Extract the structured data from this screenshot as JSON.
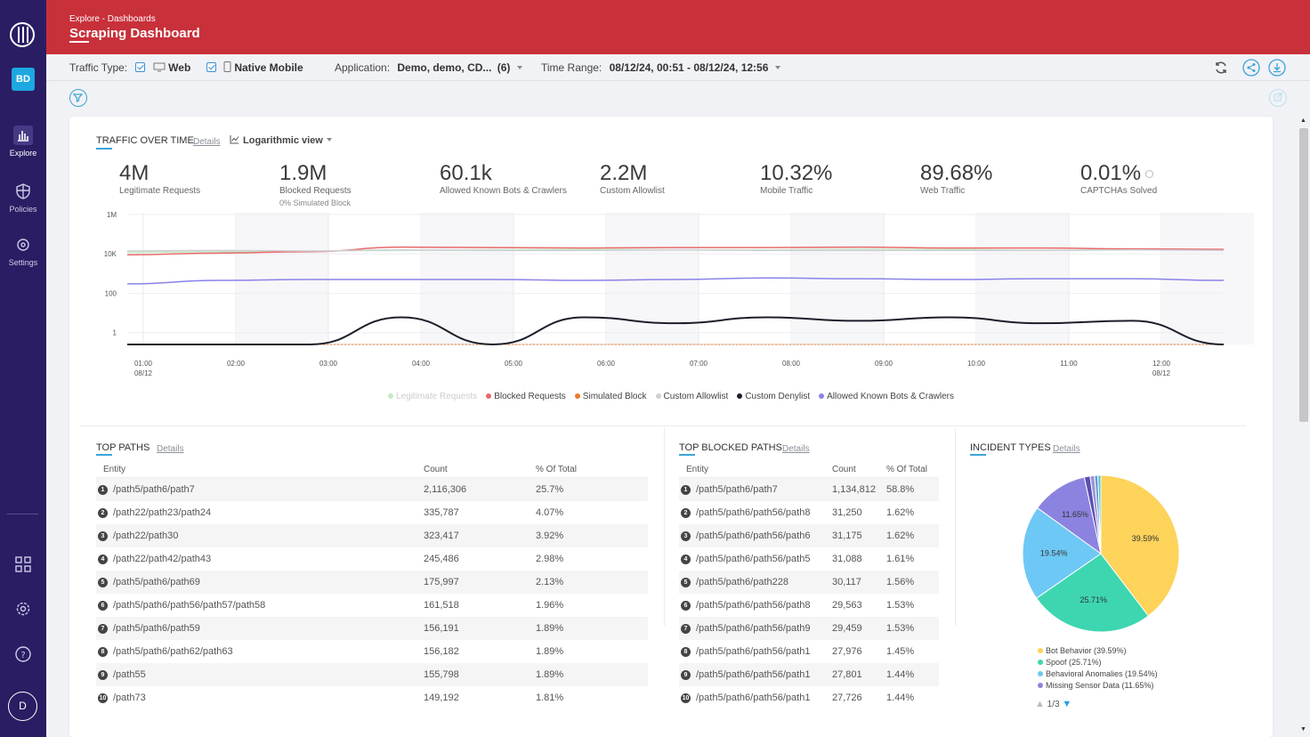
{
  "header": {
    "breadcrumb": "Explore - Dashboards",
    "title": "Scraping Dashboard"
  },
  "sidebar": {
    "avatar": "BD",
    "user": "D",
    "items": [
      {
        "label": "Explore"
      },
      {
        "label": "Policies"
      },
      {
        "label": "Settings"
      }
    ]
  },
  "toolbar": {
    "traffic_type_label": "Traffic Type:",
    "web": "Web",
    "native_mobile": "Native Mobile",
    "application_label": "Application:",
    "application_value": "Demo, demo, CD...",
    "application_count": "(6)",
    "time_range_label": "Time Range:",
    "time_range_value": "08/12/24, 00:51 - 08/12/24, 12:56"
  },
  "traffic": {
    "title": "TRAFFIC OVER TIME",
    "details": "Details",
    "view": "Logarithmic view",
    "kpis": [
      {
        "value": "4M",
        "label": "Legitimate Requests",
        "sub": ""
      },
      {
        "value": "1.9M",
        "label": "Blocked Requests",
        "sub": "0% Simulated Block"
      },
      {
        "value": "60.1k",
        "label": "Allowed Known Bots & Crawlers",
        "sub": ""
      },
      {
        "value": "2.2M",
        "label": "Custom Allowlist",
        "sub": ""
      },
      {
        "value": "10.32%",
        "label": "Mobile Traffic",
        "sub": ""
      },
      {
        "value": "89.68%",
        "label": "Web Traffic",
        "sub": ""
      },
      {
        "value": "0.01%",
        "label": "CAPTCHAs Solved",
        "sub": ""
      }
    ]
  },
  "chart_data": {
    "type": "line",
    "scale": "log",
    "y_ticks": [
      "1M",
      "10K",
      "100",
      "1"
    ],
    "x_ticks": [
      "01:00",
      "02:00",
      "03:00",
      "04:00",
      "05:00",
      "06:00",
      "07:00",
      "08:00",
      "09:00",
      "10:00",
      "11:00",
      "12:00"
    ],
    "x_date_label": "08/12",
    "series": [
      {
        "name": "Legitimate Requests",
        "color": "#c4eac4",
        "values": [
          12000,
          13000,
          14000,
          15000,
          16000,
          17000,
          16000,
          16000,
          17000,
          17000,
          15000,
          16000,
          16000
        ]
      },
      {
        "name": "Blocked Requests",
        "color": "#e86a6a",
        "values": [
          9000,
          11000,
          13000,
          22000,
          21000,
          20000,
          21000,
          21000,
          22000,
          20000,
          20000,
          18000,
          17000
        ]
      },
      {
        "name": "Simulated Block",
        "color": "#ef7a2a",
        "values": [
          0,
          0,
          0,
          0,
          0,
          0,
          0,
          0,
          0,
          0,
          0,
          0,
          0
        ]
      },
      {
        "name": "Custom Allowlist",
        "color": "#cfcfd6",
        "values": [
          14000,
          15000,
          14000,
          16000,
          15000,
          15000,
          16000,
          15000,
          15000,
          15000,
          15000,
          16000,
          15000
        ]
      },
      {
        "name": "Custom Denylist",
        "color": "#1d1d2b",
        "values": [
          0,
          0,
          0,
          6,
          0,
          6,
          3,
          6,
          4,
          6,
          3,
          4,
          0
        ]
      },
      {
        "name": "Allowed Known Bots & Crawlers",
        "color": "#8a82e8",
        "values": [
          300,
          450,
          500,
          500,
          500,
          450,
          500,
          600,
          550,
          500,
          550,
          550,
          450
        ]
      }
    ]
  },
  "legend": [
    "Legitimate Requests",
    "Blocked Requests",
    "Simulated Block",
    "Custom Allowlist",
    "Custom Denylist",
    "Allowed Known Bots & Crawlers"
  ],
  "top_paths": {
    "title": "TOP PATHS",
    "details": "Details",
    "headers": [
      "Entity",
      "Count",
      "% Of Total"
    ],
    "rows": [
      [
        "/path5/path6/path7",
        "2,116,306",
        "25.7%"
      ],
      [
        "/path22/path23/path24",
        "335,787",
        "4.07%"
      ],
      [
        "/path22/path30",
        "323,417",
        "3.92%"
      ],
      [
        "/path22/path42/path43",
        "245,486",
        "2.98%"
      ],
      [
        "/path5/path6/path69",
        "175,997",
        "2.13%"
      ],
      [
        "/path5/path6/path56/path57/path58",
        "161,518",
        "1.96%"
      ],
      [
        "/path5/path6/path59",
        "156,191",
        "1.89%"
      ],
      [
        "/path5/path6/path62/path63",
        "156,182",
        "1.89%"
      ],
      [
        "/path55",
        "155,798",
        "1.89%"
      ],
      [
        "/path73",
        "149,192",
        "1.81%"
      ]
    ]
  },
  "top_blocked": {
    "title": "TOP BLOCKED PATHS",
    "details": "Details",
    "headers": [
      "Entity",
      "Count",
      "% Of Total"
    ],
    "rows": [
      [
        "/path5/path6/path7",
        "1,134,812",
        "58.8%"
      ],
      [
        "/path5/path6/path56/path8",
        "31,250",
        "1.62%"
      ],
      [
        "/path5/path6/path56/path6",
        "31,175",
        "1.62%"
      ],
      [
        "/path5/path6/path56/path5",
        "31,088",
        "1.61%"
      ],
      [
        "/path5/path6/path228",
        "30,117",
        "1.56%"
      ],
      [
        "/path5/path6/path56/path8",
        "29,563",
        "1.53%"
      ],
      [
        "/path5/path6/path56/path9",
        "29,459",
        "1.53%"
      ],
      [
        "/path5/path6/path56/path1",
        "27,976",
        "1.45%"
      ],
      [
        "/path5/path6/path56/path1",
        "27,801",
        "1.44%"
      ],
      [
        "/path5/path6/path56/path1",
        "27,726",
        "1.44%"
      ]
    ]
  },
  "incidents": {
    "title": "INCIDENT TYPES",
    "details": "Details",
    "pager": "1/3",
    "slices": [
      {
        "name": "Bot Behavior",
        "pct": 39.59,
        "label": "39.59%",
        "legend": "Bot Behavior (39.59%)",
        "color": "#fdd35a"
      },
      {
        "name": "Spoof",
        "pct": 25.71,
        "label": "25.71%",
        "legend": "Spoof (25.71%)",
        "color": "#3dd6b0"
      },
      {
        "name": "Behavioral Anomalies",
        "pct": 19.54,
        "label": "19.54%",
        "legend": "Behavioral Anomalies (19.54%)",
        "color": "#6ec8f5"
      },
      {
        "name": "Missing Sensor Data",
        "pct": 11.65,
        "label": "11.65%",
        "legend": "Missing Sensor Data (11.65%)",
        "color": "#8c83e0"
      },
      {
        "name": "",
        "pct": 1.2,
        "label": "",
        "legend": "",
        "color": "#5a4fb0"
      },
      {
        "name": "",
        "pct": 0.9,
        "label": "",
        "legend": "",
        "color": "#9b93d8"
      },
      {
        "name": "",
        "pct": 0.7,
        "label": "",
        "legend": "",
        "color": "#6b9bd1"
      },
      {
        "name": "",
        "pct": 0.6,
        "label": "",
        "legend": "",
        "color": "#56c2d6"
      }
    ]
  }
}
